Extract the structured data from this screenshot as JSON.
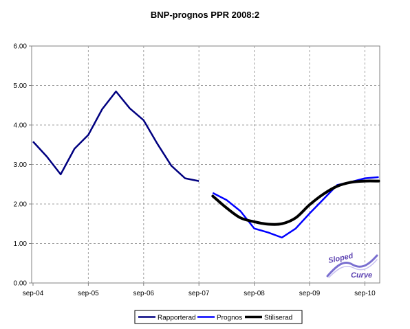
{
  "chart_data": {
    "type": "line",
    "title": "BNP-prognos PPR 2008:2",
    "xlabel": "",
    "ylabel": "",
    "ylim": [
      0,
      6
    ],
    "yticks": [
      "0.00",
      "1.00",
      "2.00",
      "3.00",
      "4.00",
      "5.00",
      "6.00"
    ],
    "xticks": [
      "sep-04",
      "sep-05",
      "sep-06",
      "sep-07",
      "sep-08",
      "sep-09",
      "sep-10"
    ],
    "x_unit": "quarters since first tick label",
    "grid": true,
    "legend_position": "bottom",
    "series": [
      {
        "name": "Rapporterad",
        "color": "#000080",
        "x": [
          0,
          1,
          2,
          3,
          4,
          5,
          6,
          7,
          8,
          9,
          10,
          11,
          12
        ],
        "y": [
          3.58,
          3.2,
          2.75,
          3.4,
          3.75,
          4.4,
          4.85,
          4.42,
          4.12,
          3.52,
          2.97,
          2.65,
          2.58
        ]
      },
      {
        "name": "Prognos",
        "color": "#0000ff",
        "x": [
          13,
          14,
          15,
          16,
          17,
          18,
          19,
          20,
          21,
          22,
          23,
          24,
          25
        ],
        "y": [
          2.28,
          2.1,
          1.82,
          1.38,
          1.28,
          1.15,
          1.38,
          1.76,
          2.12,
          2.48,
          2.56,
          2.65,
          2.68
        ]
      },
      {
        "name": "Stiliserad",
        "color": "#000000",
        "x": [
          13,
          14,
          15,
          16,
          17,
          18,
          19,
          20,
          21,
          22,
          23,
          24,
          25
        ],
        "y": [
          2.2,
          1.9,
          1.65,
          1.55,
          1.49,
          1.5,
          1.65,
          1.98,
          2.25,
          2.45,
          2.55,
          2.58,
          2.58
        ]
      }
    ]
  },
  "logo": {
    "top_text": "Sloped",
    "bottom_text": "Curve"
  }
}
